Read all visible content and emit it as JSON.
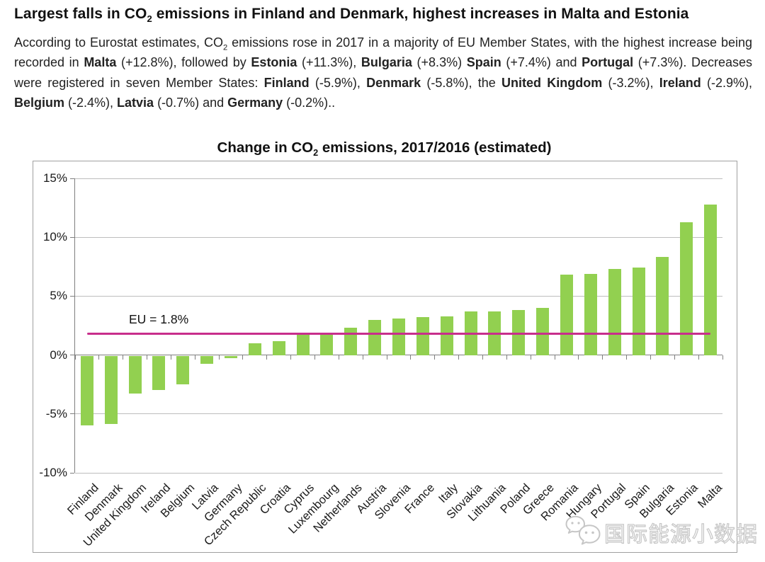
{
  "page": {
    "headline_segments": [
      {
        "t": "Largest falls in CO"
      },
      {
        "t": "2",
        "sub": true
      },
      {
        "t": " emissions in Finland and Denmark, highest increases in Malta and Estonia"
      }
    ],
    "intro_segments": [
      {
        "t": "According to Eurostat estimates, CO"
      },
      {
        "t": "2",
        "sub": true
      },
      {
        "t": " emissions rose in 2017 in a majority of EU Member States, with the highest increase being recorded in "
      },
      {
        "t": "Malta",
        "bold": true
      },
      {
        "t": " (+12.8%), followed by "
      },
      {
        "t": "Estonia",
        "bold": true
      },
      {
        "t": " (+11.3%), "
      },
      {
        "t": "Bulgaria",
        "bold": true
      },
      {
        "t": " (+8.3%) "
      },
      {
        "t": "Spain",
        "bold": true
      },
      {
        "t": " (+7.4%) and "
      },
      {
        "t": "Portugal",
        "bold": true
      },
      {
        "t": " (+7.3%). Decreases were registered in seven Member States: "
      },
      {
        "t": "Finland",
        "bold": true
      },
      {
        "t": " (-5.9%), "
      },
      {
        "t": "Denmark",
        "bold": true
      },
      {
        "t": " (-5.8%), the "
      },
      {
        "t": "United Kingdom",
        "bold": true
      },
      {
        "t": " (-3.2%), "
      },
      {
        "t": "Ireland",
        "bold": true
      },
      {
        "t": " (-2.9%), "
      },
      {
        "t": "Belgium",
        "bold": true
      },
      {
        "t": " (-2.4%), "
      },
      {
        "t": "Latvia",
        "bold": true
      },
      {
        "t": " (-0.7%) and "
      },
      {
        "t": "Germany",
        "bold": true
      },
      {
        "t": " (-0.2%).."
      }
    ]
  },
  "chart": {
    "title_segments": [
      {
        "t": "Change in CO"
      },
      {
        "t": "2",
        "sub": true
      },
      {
        "t": " emissions, 2017/2016 (estimated)"
      }
    ]
  },
  "chart_data": {
    "type": "bar",
    "title": "Change in CO2 emissions, 2017/2016 (estimated)",
    "xlabel": "",
    "ylabel": "",
    "ylim": [
      -10,
      15
    ],
    "yticks": [
      15,
      10,
      5,
      0,
      -5,
      -10
    ],
    "ytick_labels": [
      "15%",
      "10%",
      "5%",
      "0%",
      "-5%",
      "-10%"
    ],
    "grid": true,
    "bar_color": "#92D050",
    "categories": [
      "Finland",
      "Denmark",
      "United Kingdom",
      "Ireland",
      "Belgium",
      "Latvia",
      "Germany",
      "Czech Republic",
      "Croatia",
      "Cyprus",
      "Luxembourg",
      "Netherlands",
      "Austria",
      "Slovenia",
      "France",
      "Italy",
      "Slovakia",
      "Lithuania",
      "Poland",
      "Greece",
      "Romania",
      "Hungary",
      "Portugal",
      "Spain",
      "Bulgaria",
      "Estonia",
      "Malta"
    ],
    "values": [
      -5.9,
      -5.8,
      -3.2,
      -2.9,
      -2.4,
      -0.7,
      -0.2,
      1.0,
      1.2,
      1.7,
      1.8,
      2.3,
      3.0,
      3.1,
      3.2,
      3.3,
      3.7,
      3.7,
      3.8,
      4.0,
      6.8,
      6.9,
      7.3,
      7.4,
      8.3,
      11.3,
      12.8
    ],
    "reference_line": {
      "label": "EU = 1.8%",
      "value": 1.8,
      "color": "#C82E8C"
    }
  },
  "watermark": {
    "text": "国际能源小数据",
    "icon": "wechat-bubbles-icon"
  }
}
